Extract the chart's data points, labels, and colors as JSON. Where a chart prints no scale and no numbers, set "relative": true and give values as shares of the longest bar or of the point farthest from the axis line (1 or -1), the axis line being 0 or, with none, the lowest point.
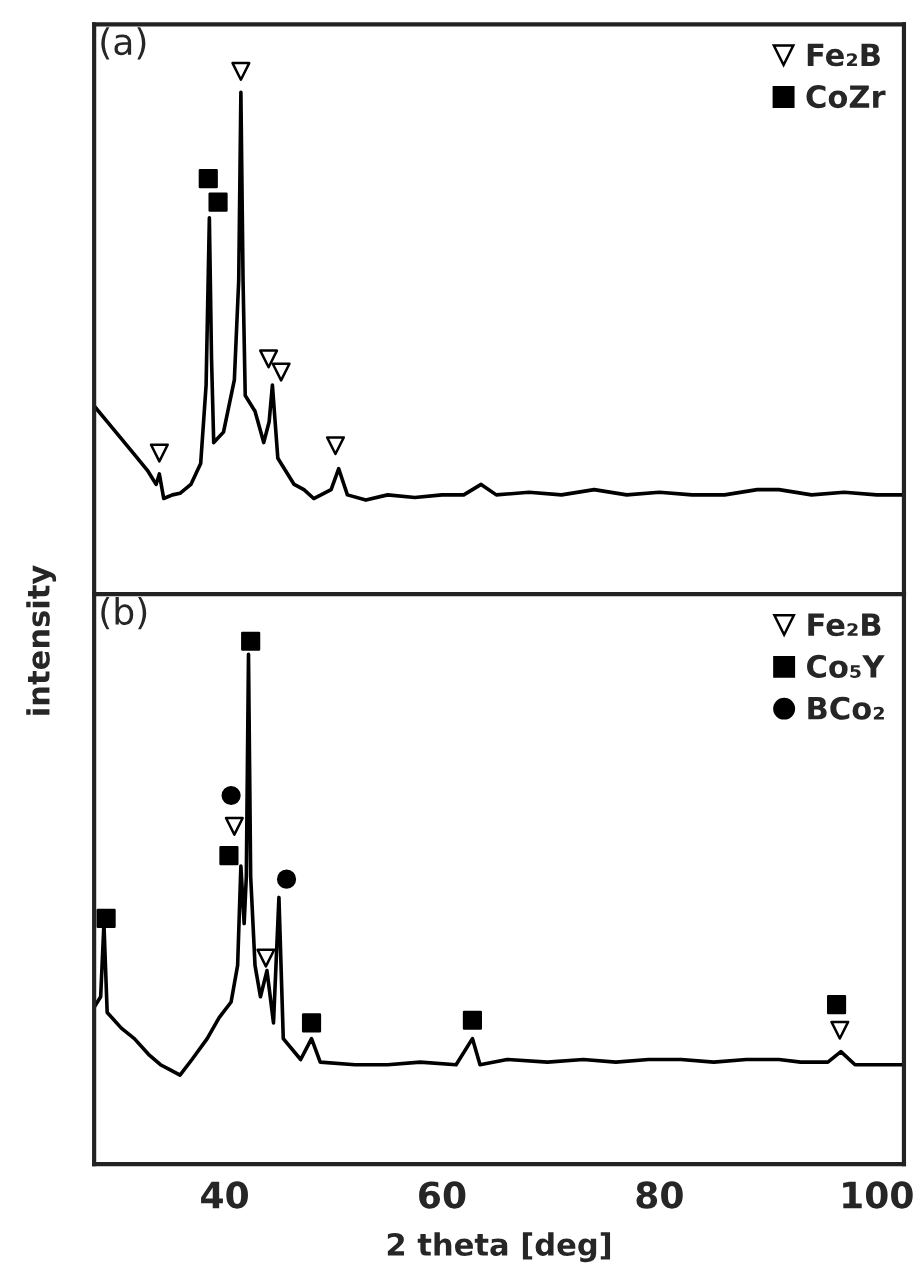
{
  "chart_data": [
    {
      "type": "line",
      "title": "(a)",
      "ylabel": "intensity",
      "relative": true,
      "xlim": [
        28,
        102.5
      ],
      "xticks": [
        40,
        60,
        80,
        100
      ],
      "tick_labels": false,
      "legend": "top right",
      "grid": false,
      "series": [
        {
          "color": "#000000",
          "x": [
            28.0,
            29.2,
            30.4,
            31.6,
            32.9,
            33.7,
            34.0,
            34.4,
            35.2,
            35.9,
            36.9,
            37.8,
            38.3,
            38.6,
            38.8,
            39.0,
            39.9,
            40.9,
            41.3,
            41.5,
            41.7,
            41.9,
            42.8,
            43.6,
            44.1,
            44.4,
            44.9,
            46.4,
            47.3,
            48.2,
            49.8,
            50.5,
            51.3,
            53.0,
            55.0,
            57.5,
            60.0,
            62.0,
            63.6,
            65.0,
            68.0,
            71.0,
            74.0,
            77.0,
            80.0,
            83.0,
            86.0,
            89.0,
            91.0,
            94.0,
            97.0,
            100.0,
            102.5
          ],
          "values": [
            0.36,
            0.33,
            0.3,
            0.27,
            0.237,
            0.21,
            0.23,
            0.183,
            0.19,
            0.193,
            0.21,
            0.25,
            0.4,
            0.72,
            0.45,
            0.29,
            0.31,
            0.41,
            0.6,
            0.96,
            0.6,
            0.38,
            0.35,
            0.29,
            0.33,
            0.4,
            0.26,
            0.21,
            0.2,
            0.183,
            0.2,
            0.24,
            0.19,
            0.18,
            0.19,
            0.185,
            0.19,
            0.19,
            0.21,
            0.19,
            0.195,
            0.19,
            0.2,
            0.19,
            0.195,
            0.19,
            0.19,
            0.2,
            0.2,
            0.19,
            0.195,
            0.19,
            0.19
          ]
        },
        {
          "type": "scatter",
          "name": "Fe₂B",
          "marker": "triangle",
          "color": "#000000",
          "x": [
            34.0,
            41.5,
            44.05,
            45.2,
            50.2
          ],
          "values": [
            0.27,
            1.0,
            0.45,
            0.425,
            0.284
          ]
        },
        {
          "type": "scatter",
          "name": "CoZr",
          "marker": "square",
          "color": "#000000",
          "x": [
            38.5,
            39.4
          ],
          "values": [
            0.795,
            0.75
          ]
        }
      ]
    },
    {
      "type": "line",
      "title": "(b)",
      "xlabel": "2 theta [deg]",
      "relative": true,
      "xlim": [
        28,
        102.5
      ],
      "xticks": [
        40,
        60,
        80,
        100
      ],
      "tick_labels": "x",
      "legend": "top right",
      "grid": false,
      "series": [
        {
          "color": "#000000",
          "x": [
            28.0,
            28.6,
            28.9,
            29.2,
            30.5,
            31.7,
            33.0,
            34.1,
            35.0,
            35.9,
            37.0,
            38.4,
            39.5,
            40.6,
            41.2,
            41.5,
            41.8,
            42.0,
            42.2,
            42.4,
            42.8,
            43.3,
            43.9,
            44.5,
            45.0,
            45.4,
            47.0,
            48.0,
            48.8,
            52.0,
            55.0,
            58.0,
            61.3,
            62.8,
            63.5,
            66.0,
            69.7,
            73.0,
            76.0,
            79.0,
            82.0,
            85.0,
            88.0,
            91.0,
            93.0,
            95.5,
            96.7,
            98.0,
            100.0,
            102.5
          ],
          "values": [
            0.3,
            0.32,
            0.46,
            0.29,
            0.26,
            0.24,
            0.21,
            0.19,
            0.18,
            0.17,
            0.2,
            0.24,
            0.28,
            0.31,
            0.38,
            0.57,
            0.46,
            0.55,
            0.975,
            0.55,
            0.38,
            0.32,
            0.37,
            0.27,
            0.51,
            0.24,
            0.2,
            0.24,
            0.195,
            0.19,
            0.19,
            0.195,
            0.19,
            0.24,
            0.19,
            0.2,
            0.195,
            0.2,
            0.195,
            0.2,
            0.2,
            0.195,
            0.2,
            0.2,
            0.195,
            0.195,
            0.215,
            0.19,
            0.19,
            0.19
          ]
        },
        {
          "type": "scatter",
          "name": "Fe₂B",
          "marker": "triangle",
          "color": "#000000",
          "x": [
            40.9,
            43.8,
            96.6
          ],
          "values": [
            0.646,
            0.394,
            0.256
          ]
        },
        {
          "type": "scatter",
          "name": "Co₅Y",
          "marker": "square",
          "color": "#000000",
          "x": [
            29.1,
            40.4,
            42.4,
            48.0,
            62.8,
            96.3
          ],
          "values": [
            0.47,
            0.59,
            1.0,
            0.27,
            0.275,
            0.305
          ]
        },
        {
          "type": "scatter",
          "name": "BCo₂",
          "marker": "circle",
          "color": "#000000",
          "x": [
            40.6,
            45.7
          ],
          "values": [
            0.705,
            0.545
          ]
        }
      ]
    }
  ]
}
